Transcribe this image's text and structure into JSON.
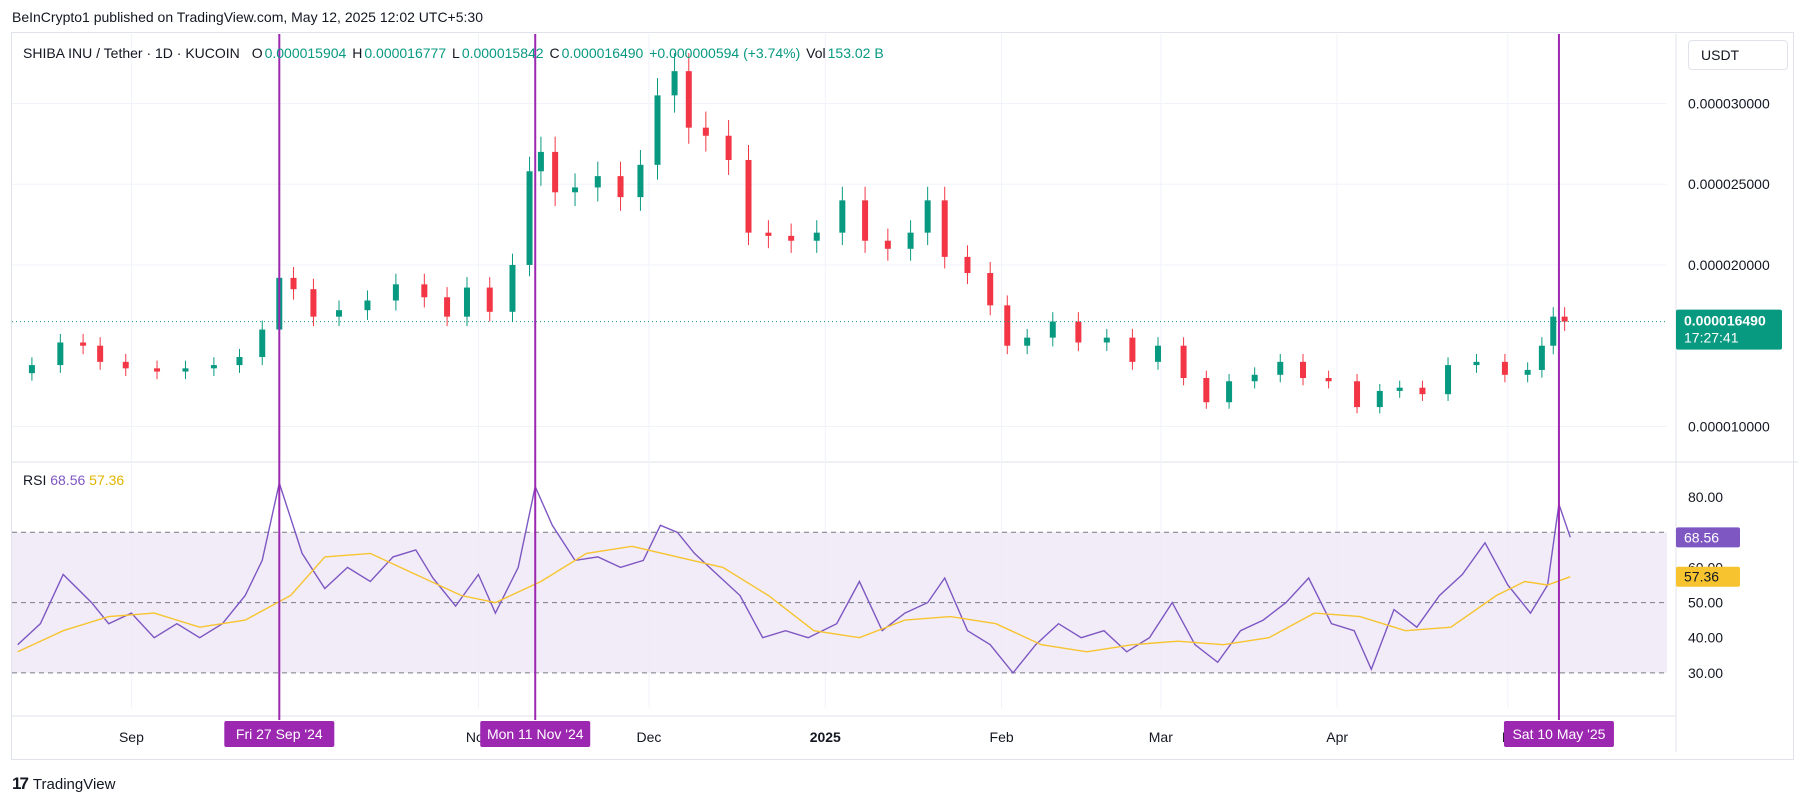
{
  "header": {
    "published": "BeInCrypto1 published on TradingView.com, May 12, 2025 12:02 UTC+5:30"
  },
  "legend": {
    "symbol": "SHIBA INU / Tether · 1D · KUCOIN",
    "o_label": "O",
    "o": "0.000015904",
    "h_label": "H",
    "h": "0.000016777",
    "l_label": "L",
    "l": "0.000015842",
    "c_label": "C",
    "c": "0.000016490",
    "change": "+0.000000594 (+3.74%)",
    "vol_label": "Vol",
    "vol": "153.02 B"
  },
  "currency_button": "USDT",
  "price_tag": {
    "price": "0.000016490",
    "countdown": "17:27:41"
  },
  "rsi_legend": {
    "name": "RSI",
    "rsi": "68.56",
    "ma": "57.36"
  },
  "brand": "TradingView",
  "colors": {
    "up": "#089981",
    "down": "#f23645",
    "rsi_line": "#7e57c2",
    "rsi_ma": "#f7c430",
    "marker": "#9c27b0",
    "rsi_band": "#ede7f6"
  },
  "chart_data": [
    {
      "type": "candlestick",
      "title": "SHIBA INU / Tether · 1D · KUCOIN",
      "ylabel": "USDT",
      "ylim": [
        7.8e-06,
        3.43e-05
      ],
      "xlim": [
        "2024-08-11",
        "2025-05-29"
      ],
      "y_ticks": [
        "0.000030000",
        "0.000025000",
        "0.000020000",
        "0.000010000"
      ],
      "x_ticks": [
        {
          "date": "2024-09-01",
          "label": "Sep"
        },
        {
          "date": "2024-11-01",
          "label": "Nov"
        },
        {
          "date": "2024-12-01",
          "label": "Dec"
        },
        {
          "date": "2025-01-01",
          "label": "2025"
        },
        {
          "date": "2025-02-01",
          "label": "Feb"
        },
        {
          "date": "2025-03-01",
          "label": "Mar"
        },
        {
          "date": "2025-04-01",
          "label": "Apr"
        },
        {
          "date": "2025-05-01",
          "label": "M"
        }
      ],
      "grid": true,
      "last_close": 1.649e-05,
      "close_series": [
        [
          "2024-08-12",
          1.33e-05
        ],
        [
          "2024-08-17",
          1.38e-05
        ],
        [
          "2024-08-22",
          1.52e-05
        ],
        [
          "2024-08-25",
          1.5e-05
        ],
        [
          "2024-08-28",
          1.4e-05
        ],
        [
          "2024-09-03",
          1.36e-05
        ],
        [
          "2024-09-08",
          1.34e-05
        ],
        [
          "2024-09-13",
          1.36e-05
        ],
        [
          "2024-09-18",
          1.38e-05
        ],
        [
          "2024-09-22",
          1.43e-05
        ],
        [
          "2024-09-26",
          1.6e-05
        ],
        [
          "2024-09-28",
          1.92e-05
        ],
        [
          "2024-10-01",
          1.85e-05
        ],
        [
          "2024-10-05",
          1.68e-05
        ],
        [
          "2024-10-10",
          1.72e-05
        ],
        [
          "2024-10-15",
          1.78e-05
        ],
        [
          "2024-10-20",
          1.88e-05
        ],
        [
          "2024-10-25",
          1.8e-05
        ],
        [
          "2024-10-28",
          1.68e-05
        ],
        [
          "2024-11-01",
          1.86e-05
        ],
        [
          "2024-11-05",
          1.71e-05
        ],
        [
          "2024-11-09",
          2e-05
        ],
        [
          "2024-11-11",
          2.58e-05
        ],
        [
          "2024-11-13",
          2.7e-05
        ],
        [
          "2024-11-16",
          2.45e-05
        ],
        [
          "2024-11-20",
          2.48e-05
        ],
        [
          "2024-11-24",
          2.55e-05
        ],
        [
          "2024-11-28",
          2.42e-05
        ],
        [
          "2024-12-01",
          2.62e-05
        ],
        [
          "2024-12-04",
          3.05e-05
        ],
        [
          "2024-12-07",
          3.2e-05
        ],
        [
          "2024-12-09",
          2.85e-05
        ],
        [
          "2024-12-13",
          2.8e-05
        ],
        [
          "2024-12-17",
          2.65e-05
        ],
        [
          "2024-12-20",
          2.2e-05
        ],
        [
          "2024-12-24",
          2.18e-05
        ],
        [
          "2024-12-28",
          2.15e-05
        ],
        [
          "2025-01-02",
          2.2e-05
        ],
        [
          "2025-01-06",
          2.4e-05
        ],
        [
          "2025-01-10",
          2.15e-05
        ],
        [
          "2025-01-14",
          2.1e-05
        ],
        [
          "2025-01-18",
          2.2e-05
        ],
        [
          "2025-01-20",
          2.4e-05
        ],
        [
          "2025-01-24",
          2.05e-05
        ],
        [
          "2025-01-28",
          1.95e-05
        ],
        [
          "2025-02-01",
          1.75e-05
        ],
        [
          "2025-02-03",
          1.5e-05
        ],
        [
          "2025-02-08",
          1.55e-05
        ],
        [
          "2025-02-12",
          1.65e-05
        ],
        [
          "2025-02-17",
          1.52e-05
        ],
        [
          "2025-02-22",
          1.55e-05
        ],
        [
          "2025-02-26",
          1.4e-05
        ],
        [
          "2025-03-03",
          1.5e-05
        ],
        [
          "2025-03-07",
          1.3e-05
        ],
        [
          "2025-03-11",
          1.15e-05
        ],
        [
          "2025-03-15",
          1.28e-05
        ],
        [
          "2025-03-20",
          1.32e-05
        ],
        [
          "2025-03-24",
          1.4e-05
        ],
        [
          "2025-03-28",
          1.3e-05
        ],
        [
          "2025-04-02",
          1.28e-05
        ],
        [
          "2025-04-07",
          1.12e-05
        ],
        [
          "2025-04-10",
          1.22e-05
        ],
        [
          "2025-04-14",
          1.24e-05
        ],
        [
          "2025-04-18",
          1.2e-05
        ],
        [
          "2025-04-23",
          1.38e-05
        ],
        [
          "2025-04-28",
          1.4e-05
        ],
        [
          "2025-05-03",
          1.32e-05
        ],
        [
          "2025-05-06",
          1.35e-05
        ],
        [
          "2025-05-08",
          1.5e-05
        ],
        [
          "2025-05-10",
          1.68e-05
        ],
        [
          "2025-05-12",
          1.649e-05
        ]
      ]
    },
    {
      "type": "line",
      "title": "RSI",
      "ylim": [
        20,
        90
      ],
      "y_ticks": [
        "80.00",
        "60.00",
        "50.00",
        "40.00",
        "30.00"
      ],
      "bands": [
        70,
        30
      ],
      "midline": 50,
      "series": [
        {
          "name": "RSI",
          "last": 68.56,
          "points": [
            [
              "2024-08-12",
              38
            ],
            [
              "2024-08-16",
              44
            ],
            [
              "2024-08-20",
              58
            ],
            [
              "2024-08-25",
              50
            ],
            [
              "2024-08-28",
              44
            ],
            [
              "2024-09-01",
              47
            ],
            [
              "2024-09-05",
              40
            ],
            [
              "2024-09-09",
              44
            ],
            [
              "2024-09-13",
              40
            ],
            [
              "2024-09-17",
              44
            ],
            [
              "2024-09-21",
              52
            ],
            [
              "2024-09-24",
              62
            ],
            [
              "2024-09-27",
              84
            ],
            [
              "2024-10-01",
              64
            ],
            [
              "2024-10-05",
              54
            ],
            [
              "2024-10-09",
              60
            ],
            [
              "2024-10-13",
              56
            ],
            [
              "2024-10-17",
              63
            ],
            [
              "2024-10-21",
              65
            ],
            [
              "2024-10-24",
              57
            ],
            [
              "2024-10-28",
              49
            ],
            [
              "2024-11-01",
              58
            ],
            [
              "2024-11-04",
              47
            ],
            [
              "2024-11-08",
              60
            ],
            [
              "2024-11-11",
              83
            ],
            [
              "2024-11-14",
              72
            ],
            [
              "2024-11-18",
              62
            ],
            [
              "2024-11-22",
              63
            ],
            [
              "2024-11-26",
              60
            ],
            [
              "2024-11-30",
              62
            ],
            [
              "2024-12-03",
              72
            ],
            [
              "2024-12-06",
              70
            ],
            [
              "2024-12-09",
              64
            ],
            [
              "2024-12-13",
              58
            ],
            [
              "2024-12-17",
              52
            ],
            [
              "2024-12-21",
              40
            ],
            [
              "2024-12-25",
              42
            ],
            [
              "2024-12-29",
              40
            ],
            [
              "2025-01-03",
              44
            ],
            [
              "2025-01-07",
              56
            ],
            [
              "2025-01-11",
              42
            ],
            [
              "2025-01-15",
              47
            ],
            [
              "2025-01-19",
              50
            ],
            [
              "2025-01-22",
              57
            ],
            [
              "2025-01-26",
              42
            ],
            [
              "2025-01-30",
              38
            ],
            [
              "2025-02-03",
              30
            ],
            [
              "2025-02-07",
              38
            ],
            [
              "2025-02-11",
              44
            ],
            [
              "2025-02-15",
              40
            ],
            [
              "2025-02-19",
              42
            ],
            [
              "2025-02-23",
              36
            ],
            [
              "2025-02-27",
              40
            ],
            [
              "2025-03-03",
              50
            ],
            [
              "2025-03-07",
              38
            ],
            [
              "2025-03-11",
              33
            ],
            [
              "2025-03-15",
              42
            ],
            [
              "2025-03-19",
              45
            ],
            [
              "2025-03-23",
              50
            ],
            [
              "2025-03-27",
              57
            ],
            [
              "2025-03-31",
              44
            ],
            [
              "2025-04-04",
              42
            ],
            [
              "2025-04-07",
              31
            ],
            [
              "2025-04-11",
              48
            ],
            [
              "2025-04-15",
              43
            ],
            [
              "2025-04-19",
              52
            ],
            [
              "2025-04-23",
              58
            ],
            [
              "2025-04-27",
              67
            ],
            [
              "2025-05-01",
              55
            ],
            [
              "2025-05-05",
              47
            ],
            [
              "2025-05-08",
              55
            ],
            [
              "2025-05-10",
              78
            ],
            [
              "2025-05-12",
              68.56
            ]
          ]
        },
        {
          "name": "MA",
          "last": 57.36,
          "points": [
            [
              "2024-08-12",
              36
            ],
            [
              "2024-08-20",
              42
            ],
            [
              "2024-08-28",
              46
            ],
            [
              "2024-09-05",
              47
            ],
            [
              "2024-09-13",
              43
            ],
            [
              "2024-09-21",
              45
            ],
            [
              "2024-09-29",
              52
            ],
            [
              "2024-10-05",
              63
            ],
            [
              "2024-10-13",
              64
            ],
            [
              "2024-10-21",
              58
            ],
            [
              "2024-10-29",
              52
            ],
            [
              "2024-11-04",
              50
            ],
            [
              "2024-11-12",
              56
            ],
            [
              "2024-11-20",
              64
            ],
            [
              "2024-11-28",
              66
            ],
            [
              "2024-12-06",
              63
            ],
            [
              "2024-12-14",
              60
            ],
            [
              "2024-12-22",
              52
            ],
            [
              "2024-12-30",
              42
            ],
            [
              "2025-01-07",
              40
            ],
            [
              "2025-01-15",
              45
            ],
            [
              "2025-01-23",
              46
            ],
            [
              "2025-01-31",
              44
            ],
            [
              "2025-02-08",
              38
            ],
            [
              "2025-02-16",
              36
            ],
            [
              "2025-02-24",
              38
            ],
            [
              "2025-03-04",
              39
            ],
            [
              "2025-03-12",
              38
            ],
            [
              "2025-03-20",
              40
            ],
            [
              "2025-03-28",
              47
            ],
            [
              "2025-04-05",
              46
            ],
            [
              "2025-04-13",
              42
            ],
            [
              "2025-04-21",
              43
            ],
            [
              "2025-04-29",
              52
            ],
            [
              "2025-05-04",
              56
            ],
            [
              "2025-05-08",
              55
            ],
            [
              "2025-05-12",
              57.36
            ]
          ]
        }
      ]
    }
  ],
  "markers": [
    {
      "date": "2024-09-27",
      "label": "Fri 27 Sep '24"
    },
    {
      "date": "2024-11-11",
      "label": "Mon 11 Nov '24"
    },
    {
      "date": "2025-05-10",
      "label": "Sat 10 May '25"
    }
  ]
}
